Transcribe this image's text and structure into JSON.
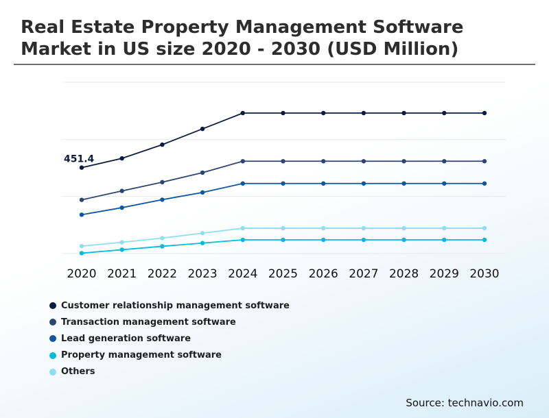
{
  "header": {
    "title_line1": "Real Estate Property Management Software",
    "title_line2": "Market in US size 2020 - 2030 (USD Million)"
  },
  "source": "Source: technavio.com",
  "chart_data": {
    "type": "line",
    "title": "Real Estate Property Management Software Market in US size 2020 - 2030 (USD Million)",
    "xlabel": "",
    "ylabel": "",
    "x": [
      "2020",
      "2021",
      "2022",
      "2023",
      "2024",
      "2025",
      "2026",
      "2027",
      "2028",
      "2029",
      "2030"
    ],
    "ylim": [
      0,
      900
    ],
    "grid": true,
    "legend_position": "bottom-left",
    "annotations": [
      {
        "series": "Customer relationship management software",
        "x": "2020",
        "text": "451.4"
      }
    ],
    "series": [
      {
        "name": "Customer relationship management software",
        "color": "#0d1b3e",
        "values": [
          451.4,
          500.0,
          572.0,
          655.0,
          738.0,
          738.0,
          738.0,
          738.0,
          738.0,
          738.0,
          738.0
        ]
      },
      {
        "name": "Transaction management software",
        "color": "#2d4471",
        "values": [
          282.0,
          329.0,
          375.0,
          425.0,
          485.0,
          485.0,
          485.0,
          485.0,
          485.0,
          485.0,
          485.0
        ]
      },
      {
        "name": "Lead generation software",
        "color": "#0d56a0",
        "values": [
          204.0,
          241.0,
          283.0,
          321.0,
          368.0,
          368.0,
          368.0,
          368.0,
          368.0,
          368.0,
          368.0
        ]
      },
      {
        "name": "Property management software",
        "color": "#00bcd8",
        "values": [
          2.0,
          20.0,
          38.0,
          55.0,
          72.0,
          72.0,
          72.0,
          72.0,
          72.0,
          72.0,
          72.0
        ]
      },
      {
        "name": "Others",
        "color": "#8fdfee",
        "values": [
          39.0,
          59.0,
          81.0,
          107.0,
          133.0,
          133.0,
          133.0,
          133.0,
          133.0,
          133.0,
          133.0
        ]
      }
    ]
  }
}
